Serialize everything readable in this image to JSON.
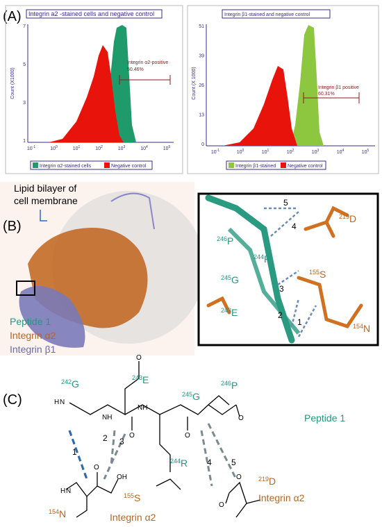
{
  "panel_a": {
    "label": "(A)",
    "left": {
      "title": "Integrin a2 -stained cells and negative control",
      "y_label": "Count (X1000)",
      "y_ticks": [
        "7",
        "5",
        "3",
        "1"
      ],
      "x_tick_base": "10",
      "x_tick_exponents": [
        "-1",
        "0",
        "1",
        "2",
        "3",
        "4",
        "5"
      ],
      "gate_label": "Integrin α2-positive",
      "gate_percent": "50.46%",
      "legend": [
        "Integrin α2-stained cells",
        "Negative control"
      ]
    },
    "right": {
      "title": "Integrin β1-stained and negative control",
      "y_label": "Count (X 1000)",
      "y_ticks": [
        "51",
        "39",
        "26",
        "13",
        "0"
      ],
      "x_tick_base": "10",
      "x_tick_exponents": [
        "-1",
        "0",
        "1",
        "2",
        "3",
        "4",
        "5"
      ],
      "gate_label": "Integrin β1 positive",
      "gate_percent": "60.31%",
      "legend": [
        "Integrin β1-stained",
        "Negative control"
      ]
    }
  },
  "panel_b": {
    "label": "(B)",
    "membrane_label": [
      "Lipid bilayer of",
      "cell membrane"
    ],
    "legend": [
      "Peptide 1",
      "Integrin α2",
      "Integrin β1"
    ],
    "inset": {
      "bonds": [
        "5",
        "4",
        "3",
        "2",
        "1"
      ],
      "residues": [
        {
          "num": "246",
          "name": "P"
        },
        {
          "num": "245",
          "name": "G"
        },
        {
          "num": "244",
          "name": "R"
        },
        {
          "num": "243",
          "name": "E"
        },
        {
          "num": "219",
          "name": "D"
        },
        {
          "num": "155",
          "name": "S"
        },
        {
          "num": "154",
          "name": "N"
        }
      ]
    }
  },
  "panel_c": {
    "label": "(C)",
    "peptide_residues": [
      {
        "num": "242",
        "name": "G"
      },
      {
        "num": "243",
        "name": "E"
      },
      {
        "num": "244",
        "name": "R"
      },
      {
        "num": "245",
        "name": "G"
      },
      {
        "num": "246",
        "name": "P"
      }
    ],
    "integrin_residues": [
      {
        "num": "154",
        "name": "N"
      },
      {
        "num": "155",
        "name": "S"
      },
      {
        "num": "219",
        "name": "D"
      }
    ],
    "bonds": [
      "1",
      "2",
      "3",
      "4",
      "5"
    ],
    "peptide_label": "Peptide 1",
    "integrin_label": "Integrin α2",
    "atoms": [
      "H",
      "N",
      "H",
      "N",
      "O",
      "O",
      "O",
      "OH",
      "O",
      "NH",
      "NH",
      "O",
      "O",
      "O"
    ]
  }
}
